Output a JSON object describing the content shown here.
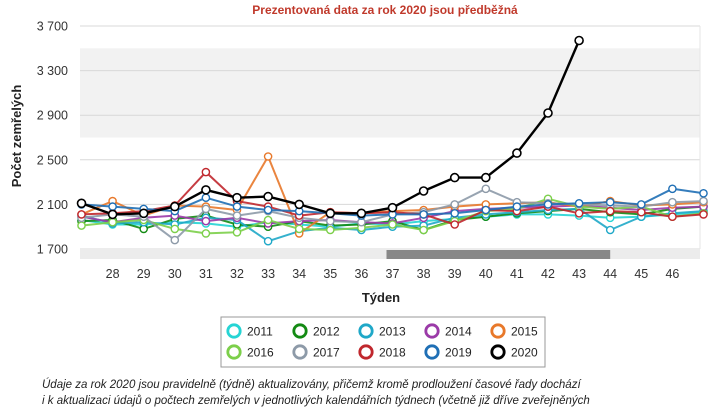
{
  "chart_data": {
    "type": "line",
    "subtitle": "Prezentovaná data za rok 2020 jsou předběžná",
    "ylabel": "Počet zemřelých",
    "xlabel": "Týden",
    "ylim": [
      1700,
      3700
    ],
    "yticks": [
      1700,
      2100,
      2500,
      2900,
      3300,
      3700
    ],
    "ytick_labels": [
      "1 700",
      "2 100",
      "2 500",
      "2 900",
      "3 300",
      "3 700"
    ],
    "x": [
      27,
      28,
      29,
      30,
      31,
      32,
      33,
      34,
      35,
      36,
      37,
      38,
      39,
      40,
      41,
      42,
      43,
      44,
      45,
      46,
      47
    ],
    "xticks": [
      28,
      29,
      30,
      31,
      32,
      33,
      34,
      35,
      36,
      37,
      38,
      39,
      40,
      41,
      42,
      43,
      44,
      45,
      46
    ],
    "xtick_labels": [
      "28",
      "29",
      "30",
      "31",
      "32",
      "33",
      "34",
      "35",
      "36",
      "37",
      "38",
      "39",
      "40",
      "41",
      "42",
      "43",
      "44",
      "45",
      "46"
    ],
    "xlim": [
      27,
      47
    ],
    "band": [
      2700,
      3500
    ],
    "scrollbar_range": [
      37,
      44
    ],
    "series": [
      {
        "name": "2011",
        "color": "#26d4d4",
        "values": [
          1960,
          1920,
          1920,
          1940,
          1930,
          1900,
          1940,
          1920,
          1900,
          1930,
          1920,
          1950,
          1970,
          1990,
          2010,
          2010,
          2000,
          1980,
          1990,
          2010,
          2030
        ]
      },
      {
        "name": "2012",
        "color": "#138a13",
        "values": [
          1950,
          1960,
          1880,
          1970,
          2000,
          1920,
          1900,
          1950,
          1910,
          1920,
          1950,
          1870,
          1960,
          1990,
          2020,
          2040,
          2060,
          2030,
          2010,
          2060,
          2080
        ]
      },
      {
        "name": "2013",
        "color": "#1fa8c8",
        "values": [
          2000,
          1930,
          1940,
          1920,
          1980,
          1960,
          1770,
          1860,
          1890,
          1870,
          1900,
          1910,
          1980,
          2010,
          2030,
          2050,
          2060,
          1870,
          1990,
          2020,
          2040
        ]
      },
      {
        "name": "2014",
        "color": "#9b3aa8",
        "values": [
          1990,
          1940,
          1980,
          2000,
          1950,
          1980,
          1930,
          1950,
          1960,
          1940,
          1930,
          1980,
          2040,
          2060,
          2070,
          2080,
          2090,
          2070,
          2050,
          2070,
          2080
        ]
      },
      {
        "name": "2015",
        "color": "#e8782a",
        "values": [
          2010,
          2130,
          2000,
          2090,
          2080,
          2050,
          2530,
          1840,
          2030,
          2020,
          2040,
          2050,
          2080,
          2100,
          2110,
          2120,
          2080,
          2130,
          2090,
          2100,
          2120
        ]
      },
      {
        "name": "2016",
        "color": "#7ccf4a",
        "values": [
          1910,
          1940,
          1960,
          1880,
          1840,
          1850,
          1960,
          1880,
          1870,
          1890,
          1920,
          1870,
          1950,
          2040,
          2060,
          2150,
          2080,
          2060,
          2080,
          1990,
          2020
        ]
      },
      {
        "name": "2017",
        "color": "#8d9aa8",
        "values": [
          1980,
          2010,
          1990,
          1780,
          2060,
          2000,
          2040,
          1980,
          1950,
          1940,
          2010,
          2030,
          2100,
          2240,
          2120,
          2110,
          2100,
          2090,
          2080,
          2120,
          2130
        ]
      },
      {
        "name": "2018",
        "color": "#c0272d",
        "values": [
          2010,
          2020,
          2040,
          2090,
          2390,
          2130,
          2080,
          2000,
          2030,
          2020,
          2030,
          2010,
          1920,
          2050,
          2040,
          2080,
          2020,
          2040,
          2030,
          1990,
          2010
        ]
      },
      {
        "name": "2019",
        "color": "#1f6fb5",
        "values": [
          2100,
          2080,
          2060,
          2040,
          2160,
          2080,
          2050,
          2040,
          2020,
          2000,
          2010,
          2010,
          2020,
          2050,
          2080,
          2100,
          2110,
          2120,
          2100,
          2240,
          2200
        ]
      },
      {
        "name": "2020",
        "color": "#000000",
        "values": [
          2110,
          2010,
          2020,
          2080,
          2230,
          2160,
          2170,
          2100,
          2020,
          2020,
          2070,
          2220,
          2340,
          2340,
          2560,
          2920,
          3570,
          null,
          null,
          null,
          null
        ]
      }
    ],
    "legend": {
      "position": "bottom-center",
      "columns": 5
    }
  },
  "note": {
    "line1": "Údaje za rok 2020 jsou pravidelně (týdně) aktualizovány, přičemž kromě prodloužení časové řady dochází",
    "line2": "i k aktualizaci údajů o počtech zemřelých v jednotlivých kalendářních týdnech (včetně již dříve zveřejněných"
  }
}
